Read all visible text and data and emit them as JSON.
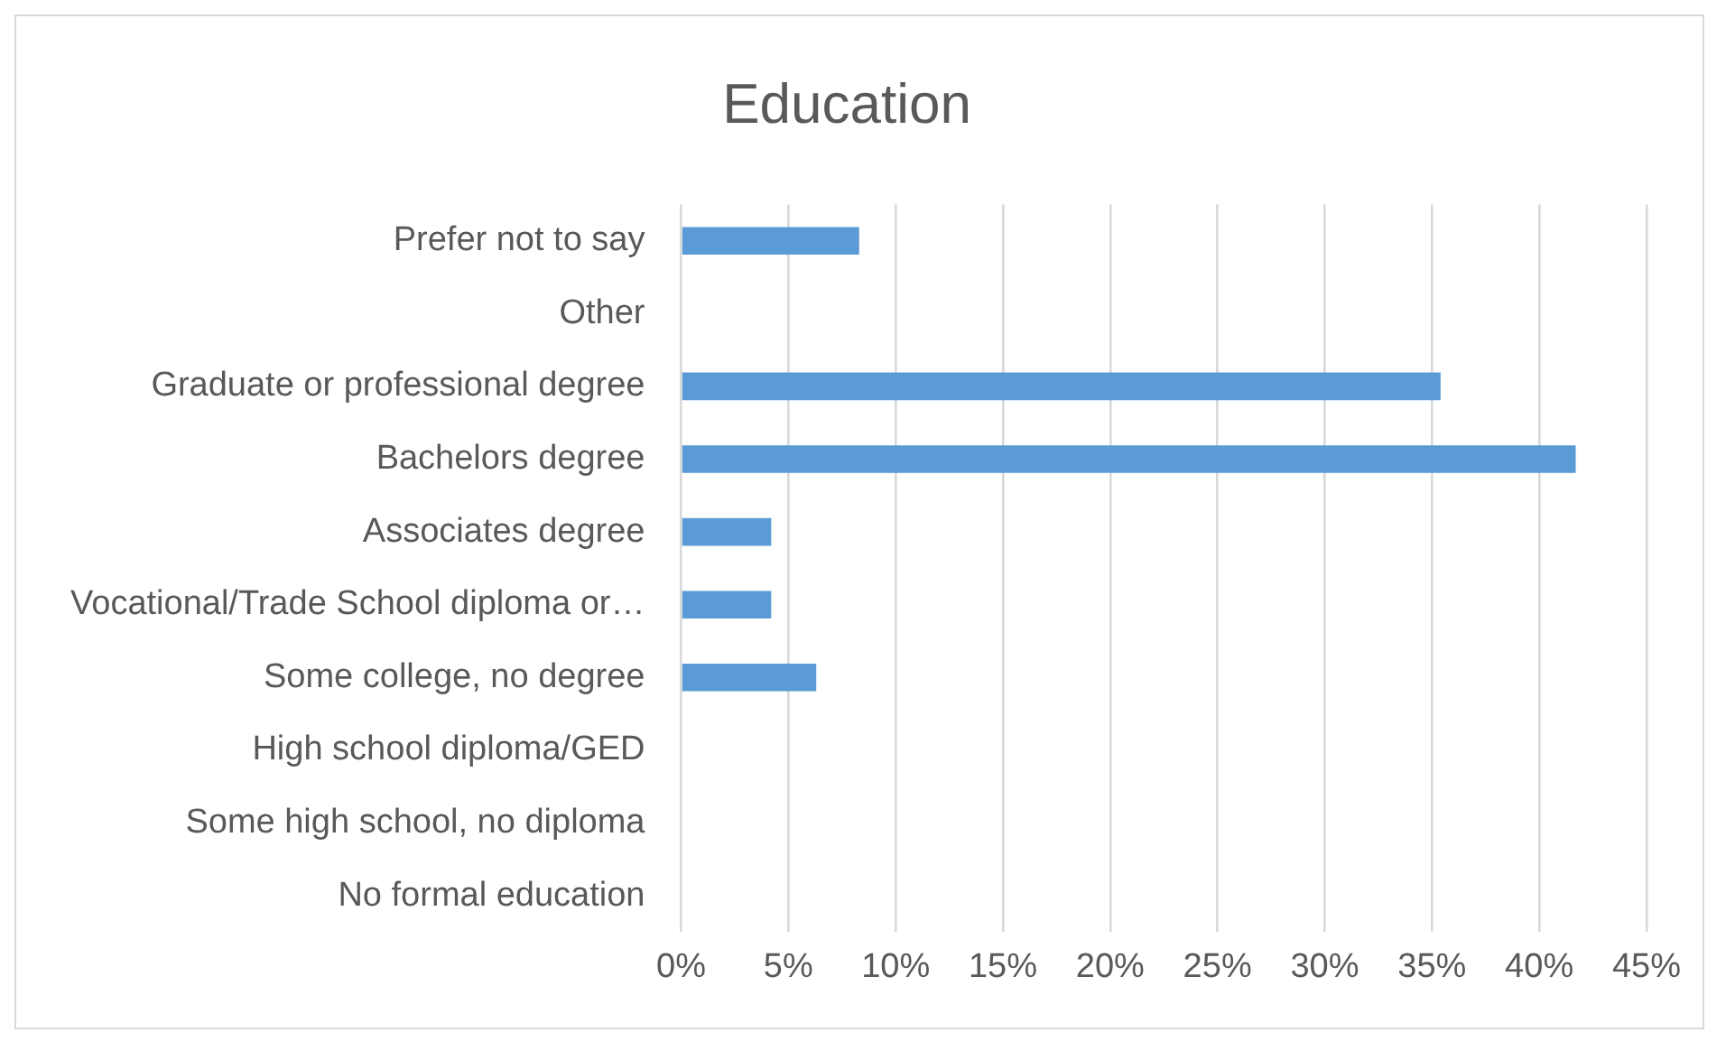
{
  "chart_data": {
    "type": "bar",
    "orientation": "horizontal",
    "title": "Education",
    "categories": [
      "Prefer not to say",
      "Other",
      "Graduate or professional degree",
      "Bachelors degree",
      "Associates degree",
      "Vocational/Trade School diploma or…",
      "Some college, no degree",
      "High school diploma/GED",
      "Some high school, no diploma",
      "No formal education"
    ],
    "values": [
      8.3,
      0,
      35.4,
      41.7,
      4.2,
      4.2,
      6.3,
      0,
      0,
      0
    ],
    "color": "#5b9bd5",
    "xlim": [
      0,
      45
    ],
    "xticks": [
      {
        "value": 0,
        "label": "0%"
      },
      {
        "value": 5,
        "label": "5%"
      },
      {
        "value": 10,
        "label": "10%"
      },
      {
        "value": 15,
        "label": "15%"
      },
      {
        "value": 20,
        "label": "20%"
      },
      {
        "value": 25,
        "label": "25%"
      },
      {
        "value": 30,
        "label": "30%"
      },
      {
        "value": 35,
        "label": "35%"
      },
      {
        "value": 40,
        "label": "40%"
      },
      {
        "value": 45,
        "label": "45%"
      }
    ],
    "grid": "x",
    "legend": false
  }
}
